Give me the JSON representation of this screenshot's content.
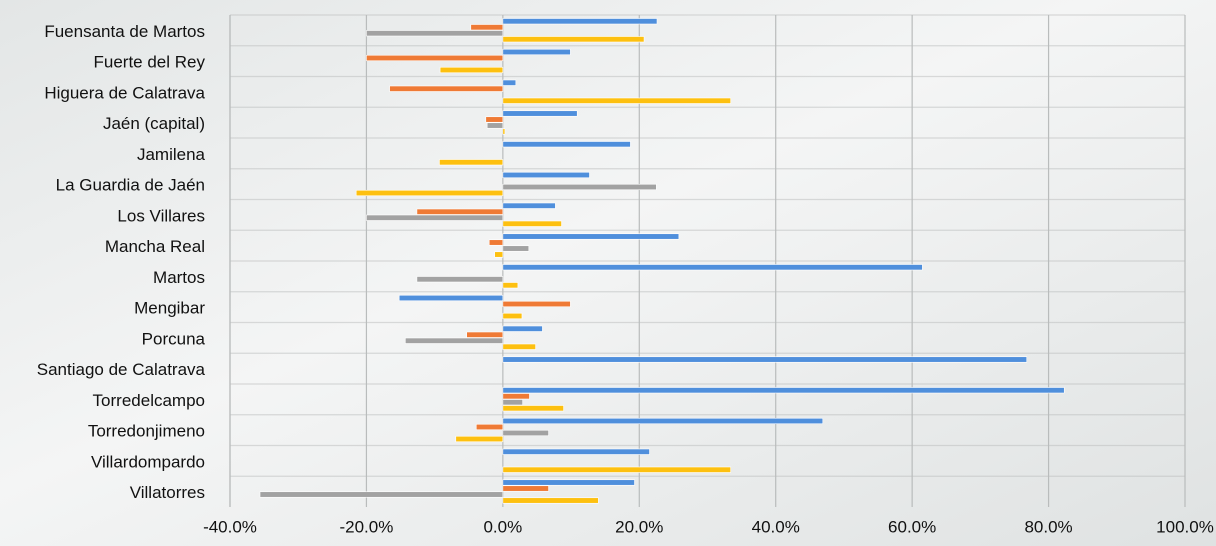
{
  "chart_data": {
    "type": "bar",
    "orientation": "horizontal",
    "categories": [
      "Fuensanta de Martos",
      "Fuerte del Rey",
      "Higuera de Calatrava",
      "Jaén (capital)",
      "Jamilena",
      "La Guardia de Jaén",
      "Los Villares",
      "Mancha Real",
      "Martos",
      "Mengibar",
      "Porcuna",
      "Santiago de Calatrava",
      "Torredelcampo",
      "Torredonjimeno",
      "Villardompardo",
      "Villatorres"
    ],
    "series": [
      {
        "color": "#4f8fdc",
        "values": [
          22.6,
          9.9,
          1.9,
          10.9,
          18.7,
          12.7,
          7.7,
          25.8,
          61.5,
          -15.2,
          5.8,
          76.8,
          82.3,
          46.9,
          21.5,
          19.3
        ]
      },
      {
        "color": "#ef7a35",
        "values": [
          -4.7,
          -20,
          -16.6,
          -2.5,
          0,
          0,
          -12.6,
          -2,
          0,
          9.9,
          -5.3,
          0,
          3.9,
          -3.9,
          0,
          6.7
        ]
      },
      {
        "color": "#a2a2a2",
        "values": [
          -20,
          0,
          0,
          -2.3,
          0,
          22.5,
          -20,
          3.8,
          -12.6,
          0,
          -14.3,
          0,
          2.9,
          6.7,
          0,
          -35.6
        ]
      },
      {
        "color": "#fdc010",
        "values": [
          20.7,
          -9.2,
          33.4,
          0.3,
          -9.3,
          -21.5,
          8.6,
          -1.2,
          2.2,
          2.8,
          4.8,
          0,
          8.9,
          -6.9,
          33.4,
          14
        ]
      }
    ],
    "xlim": [
      -40,
      100
    ],
    "xticks": [
      {
        "value": -40,
        "label": "-40.0%"
      },
      {
        "value": -20,
        "label": "-20.0%"
      },
      {
        "value": 0,
        "label": "0.0%"
      },
      {
        "value": 20,
        "label": "20.0%"
      },
      {
        "value": 40,
        "label": "40.0%"
      },
      {
        "value": 60,
        "label": "60.0%"
      },
      {
        "value": 80,
        "label": "80.0%"
      },
      {
        "value": 100,
        "label": "100.0%"
      }
    ],
    "grid": true
  }
}
